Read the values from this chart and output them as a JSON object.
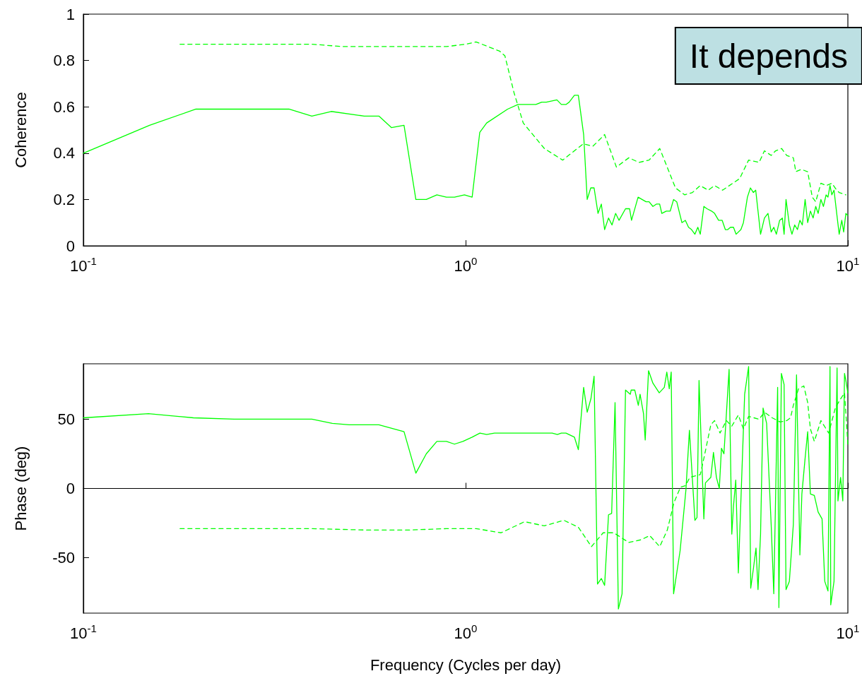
{
  "chart_data": [
    {
      "type": "line",
      "ylabel": "Coherence",
      "annotations": [
        "It depends"
      ],
      "log": "x",
      "xlim": [
        0.1,
        10
      ],
      "xticks": [
        {
          "value": 0.1,
          "label": "10$^{-1}$"
        },
        {
          "value": 1,
          "label": "10$^{0}$"
        },
        {
          "value": 10,
          "label": "10$^{1}$"
        }
      ],
      "ylim": [
        0,
        1
      ],
      "yticks": [
        0,
        0.2,
        0.4,
        0.6,
        0.8,
        1
      ],
      "series": [
        {
          "color": "#00ff00",
          "line_style": "solid",
          "x": [
            0.1,
            0.149,
            0.197,
            0.345,
            0.396,
            0.445,
            0.543,
            0.593,
            0.64,
            0.69,
            0.741,
            0.789,
            0.841,
            0.891,
            0.935,
            0.993,
            1.04,
            1.089,
            1.135,
            1.288,
            1.371,
            1.527,
            1.581,
            1.626,
            1.733,
            1.78,
            1.83,
            1.866,
            1.926,
            1.972,
            2.036,
            2.08,
            2.125,
            2.168,
            2.22,
            2.265,
            2.31,
            2.365,
            2.415,
            2.468,
            2.52,
            2.62,
            2.685,
            2.717,
            2.826,
            2.965,
            3.02,
            3.09,
            3.155,
            3.218,
            3.26,
            3.35,
            3.43,
            3.5,
            3.567,
            3.68,
            3.757,
            3.83,
            3.9,
            3.98,
            4.05,
            4.11,
            4.2,
            4.28,
            4.4,
            4.48,
            4.59,
            4.69,
            4.78,
            4.85,
            4.93,
            5.02,
            5.1,
            5.25,
            5.33,
            5.46,
            5.56,
            5.66,
            5.74,
            5.82,
            5.91,
            6.05,
            6.18,
            6.3,
            6.4,
            6.5,
            6.63,
            6.74,
            6.81,
            6.89,
            7.03,
            7.14,
            7.26,
            7.38,
            7.49,
            7.6,
            7.73,
            7.85,
            7.98,
            8.11,
            8.24,
            8.36,
            8.5,
            8.63,
            8.77,
            8.87,
            8.98,
            9.08,
            9.2,
            9.35,
            9.49,
            9.64,
            9.75,
            9.88,
            10
          ],
          "values": [
            0.4,
            0.52,
            0.59,
            0.59,
            0.56,
            0.58,
            0.56,
            0.56,
            0.51,
            0.52,
            0.2,
            0.2,
            0.22,
            0.21,
            0.21,
            0.22,
            0.21,
            0.49,
            0.53,
            0.59,
            0.61,
            0.61,
            0.62,
            0.62,
            0.63,
            0.61,
            0.61,
            0.62,
            0.65,
            0.65,
            0.48,
            0.2,
            0.25,
            0.25,
            0.14,
            0.18,
            0.07,
            0.12,
            0.09,
            0.14,
            0.11,
            0.16,
            0.16,
            0.11,
            0.21,
            0.19,
            0.19,
            0.17,
            0.18,
            0.18,
            0.14,
            0.15,
            0.15,
            0.2,
            0.19,
            0.1,
            0.11,
            0.08,
            0.07,
            0.05,
            0.08,
            0.05,
            0.17,
            0.16,
            0.15,
            0.14,
            0.11,
            0.11,
            0.07,
            0.07,
            0.08,
            0.08,
            0.05,
            0.07,
            0.1,
            0.21,
            0.25,
            0.23,
            0.24,
            0.15,
            0.05,
            0.12,
            0.14,
            0.06,
            0.08,
            0.05,
            0.11,
            0.12,
            0.05,
            0.2,
            0.09,
            0.05,
            0.09,
            0.07,
            0.11,
            0.09,
            0.2,
            0.1,
            0.15,
            0.12,
            0.17,
            0.14,
            0.2,
            0.17,
            0.22,
            0.21,
            0.26,
            0.22,
            0.24,
            0.14,
            0.05,
            0.11,
            0.06,
            0.14,
            0.13
          ]
        },
        {
          "color": "#00ff00",
          "line_style": "dashed",
          "x": [
            0.179,
            0.397,
            0.477,
            0.699,
            0.891,
            1.0,
            1.065,
            1.228,
            1.267,
            1.339,
            1.415,
            1.607,
            1.794,
            2.03,
            2.153,
            2.31,
            2.48,
            2.673,
            2.84,
            3.02,
            3.22,
            3.54,
            3.74,
            3.92,
            4.11,
            4.31,
            4.48,
            4.7,
            5.21,
            5.5,
            5.86,
            6.05,
            6.3,
            6.47,
            6.71,
            6.92,
            7.2,
            7.31,
            7.55,
            7.85,
            8.07,
            8.24,
            8.5,
            8.77,
            9.08,
            9.35,
            9.49,
            9.88
          ],
          "values": [
            0.87,
            0.87,
            0.86,
            0.86,
            0.86,
            0.87,
            0.88,
            0.84,
            0.82,
            0.66,
            0.53,
            0.42,
            0.37,
            0.44,
            0.43,
            0.48,
            0.34,
            0.38,
            0.36,
            0.37,
            0.42,
            0.25,
            0.22,
            0.23,
            0.26,
            0.24,
            0.26,
            0.24,
            0.29,
            0.37,
            0.36,
            0.41,
            0.39,
            0.41,
            0.42,
            0.39,
            0.38,
            0.32,
            0.33,
            0.32,
            0.21,
            0.19,
            0.27,
            0.26,
            0.27,
            0.24,
            0.23,
            0.22
          ]
        }
      ]
    },
    {
      "type": "line",
      "ylabel": "Phase (deg)",
      "xlabel": "Frequency (Cycles per day)",
      "log": "x",
      "xlim": [
        0.1,
        10
      ],
      "xticks": [
        {
          "value": 0.1,
          "label": "10$^{-1}$"
        },
        {
          "value": 1,
          "label": "10$^{0}$"
        },
        {
          "value": 10,
          "label": "10$^{1}$"
        }
      ],
      "ylim": [
        -90,
        90
      ],
      "yticks": [
        -50,
        0,
        50
      ],
      "series": [
        {
          "color": "#00ff00",
          "line_style": "solid",
          "x": [
            0.1,
            0.148,
            0.194,
            0.248,
            0.396,
            0.448,
            0.496,
            0.593,
            0.69,
            0.741,
            0.789,
            0.841,
            0.891,
            0.935,
            0.984,
            1.04,
            1.09,
            1.135,
            1.19,
            1.684,
            1.738,
            1.78,
            1.83,
            1.926,
            1.972,
            2.036,
            2.08,
            2.128,
            2.168,
            2.213,
            2.265,
            2.31,
            2.365,
            2.41,
            2.46,
            2.51,
            2.566,
            2.62,
            2.697,
            2.71,
            2.77,
            2.83,
            2.86,
            2.92,
            2.95,
            3.01,
            3.09,
            3.21,
            3.31,
            3.36,
            3.41,
            3.45,
            3.5,
            3.64,
            3.77,
            3.85,
            3.98,
            4.03,
            4.08,
            4.2,
            4.24,
            4.38,
            4.45,
            4.53,
            4.61,
            4.67,
            4.74,
            4.89,
            4.97,
            5.02,
            5.09,
            5.17,
            5.37,
            5.5,
            5.57,
            5.66,
            5.75,
            5.82,
            5.91,
            6.0,
            6.13,
            6.3,
            6.4,
            6.55,
            6.6,
            6.7,
            6.81,
            6.89,
            7.03,
            7.2,
            7.34,
            7.49,
            7.58,
            7.73,
            7.85,
            7.98,
            8.17,
            8.36,
            8.56,
            8.7,
            8.87,
            8.98,
            9.02,
            9.2,
            9.37,
            9.42,
            9.57,
            9.7,
            9.8,
            9.88,
            10
          ],
          "values": [
            51,
            54,
            51,
            50,
            50,
            47,
            46,
            46,
            41,
            11,
            25,
            34,
            34,
            32,
            34,
            37,
            40,
            39,
            40,
            40,
            39,
            40,
            40,
            37,
            28,
            73,
            55,
            65,
            81,
            -69,
            -65,
            -70,
            -19,
            -18,
            62,
            -87,
            -76,
            71,
            68,
            71,
            71,
            60,
            68,
            54,
            35,
            85,
            76,
            69,
            73,
            84,
            72,
            84,
            -76,
            -45,
            -1,
            42,
            -23,
            -21,
            78,
            -22,
            4,
            8,
            26,
            8,
            0,
            29,
            25,
            86,
            -33,
            -13,
            6,
            -61,
            68,
            88,
            -72,
            -58,
            -43,
            -73,
            -33,
            58,
            47,
            -26,
            -76,
            73,
            -86,
            83,
            75,
            -73,
            -67,
            -26,
            82,
            -48,
            -4,
            22,
            41,
            -4,
            -5,
            -17,
            -22,
            -67,
            -74,
            88,
            -84,
            -67,
            87,
            -9,
            8,
            -9,
            83,
            78,
            69
          ]
        },
        {
          "color": "#00ff00",
          "line_style": "dashed",
          "x": [
            0.179,
            0.397,
            0.546,
            0.71,
            0.891,
            1.0,
            1.065,
            1.238,
            1.426,
            1.607,
            1.808,
            1.972,
            2.134,
            2.29,
            2.44,
            2.673,
            2.88,
            3.03,
            3.22,
            3.37,
            3.51,
            3.65,
            3.76,
            3.86,
            4.11,
            4.21,
            4.38,
            4.48,
            4.63,
            4.81,
            4.97,
            5.17,
            5.33,
            5.5,
            5.86,
            6.05,
            6.34,
            6.65,
            6.92,
            7.08,
            7.2,
            7.43,
            7.67,
            7.85,
            7.98,
            8.17,
            8.5,
            8.91,
            9.27,
            9.49,
            9.8,
            10
          ],
          "values": [
            -29,
            -29,
            -30,
            -30,
            -29,
            -29,
            -29,
            -32,
            -24,
            -27,
            -23,
            -28,
            -42,
            -32,
            -32,
            -39,
            -37,
            -34,
            -42,
            -30,
            -10,
            1,
            2,
            8,
            10,
            23,
            46,
            49,
            40,
            49,
            45,
            53,
            43,
            52,
            50,
            55,
            51,
            48,
            49,
            51,
            60,
            72,
            74,
            62,
            43,
            34,
            49,
            40,
            58,
            63,
            69,
            32
          ]
        }
      ]
    }
  ]
}
